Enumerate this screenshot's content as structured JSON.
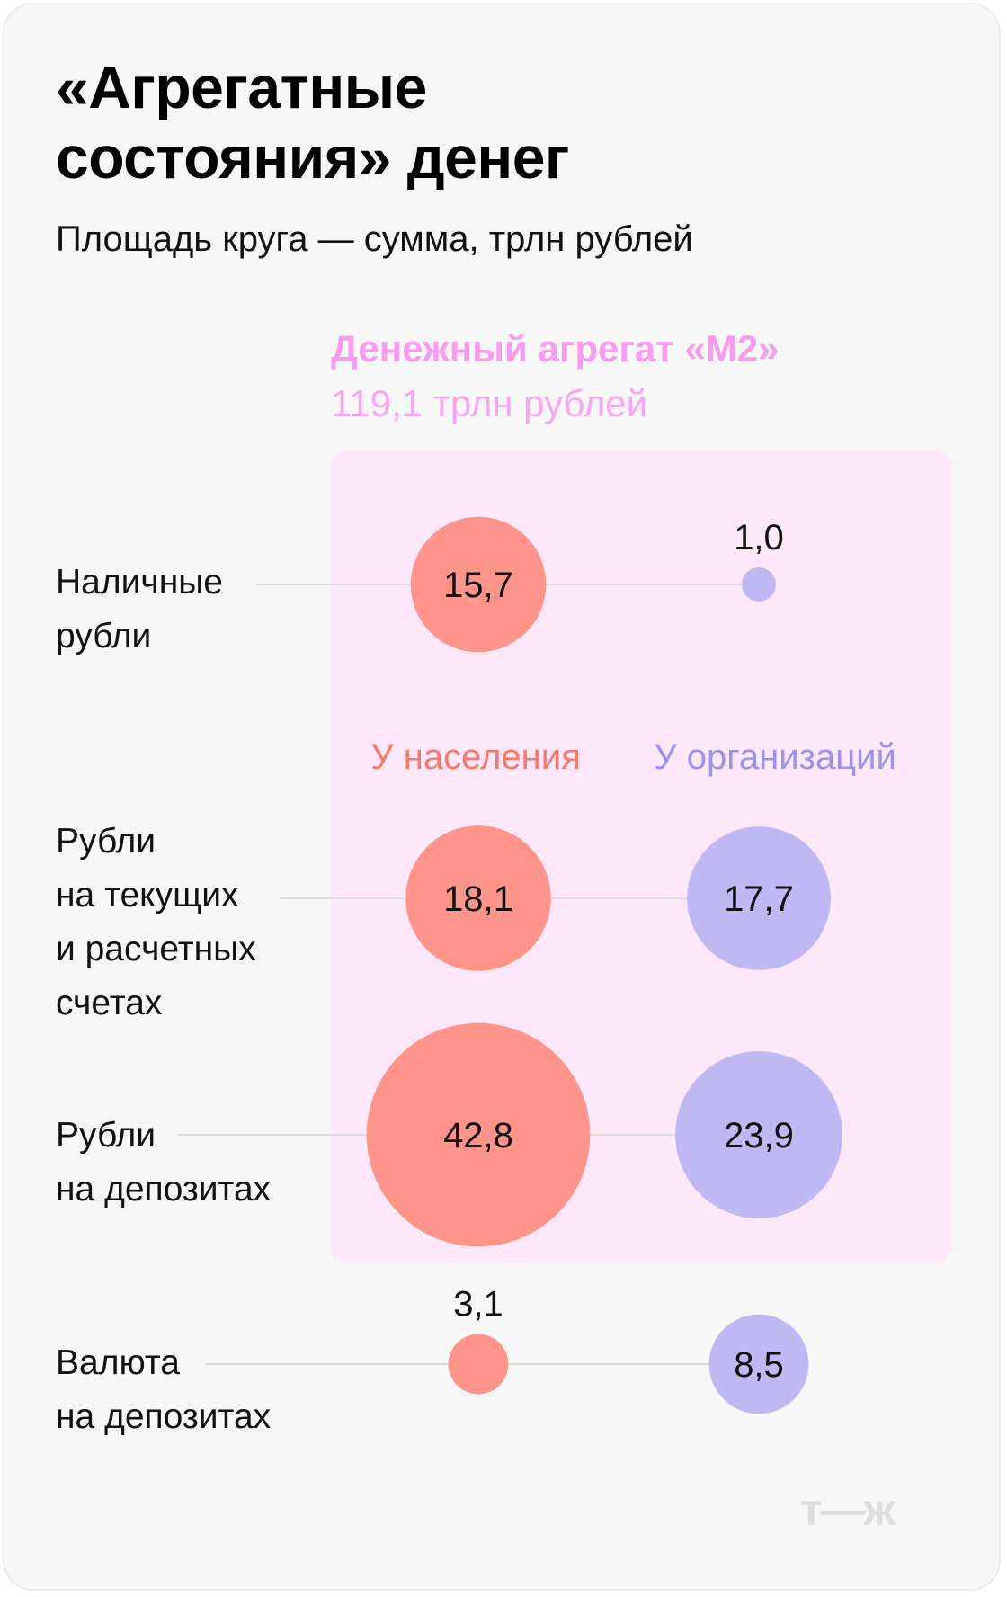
{
  "title": "«Агрегатные состояния» денег",
  "subtitle": "Площадь круга — сумма, трлн рублей",
  "logo": "т—ж",
  "chart_data": {
    "type": "bubble",
    "title": "«Агрегатные состояния» денег",
    "subtitle": "Площадь круга — сумма, трлн рублей",
    "group": {
      "label": "Денежный агрегат «М2»",
      "total_label": "119,1 трлн рублей",
      "total": 119.1
    },
    "columns": [
      {
        "name": "У населения",
        "color": "#ff958a",
        "label_color": "#f8796c"
      },
      {
        "name": "У организаций",
        "color": "#bfb8f2",
        "label_color": "#9a92ee"
      }
    ],
    "rows": [
      {
        "label": "Наличные\nрубли",
        "values": [
          15.7,
          1.0
        ],
        "labels": [
          "15,7",
          "1,0"
        ],
        "in_m2": true
      },
      {
        "label": "Рубли\nна текущих\nи расчетных\nсчетах",
        "values": [
          18.1,
          17.7
        ],
        "labels": [
          "18,1",
          "17,7"
        ],
        "in_m2": true
      },
      {
        "label": "Рубли\nна депозитах",
        "values": [
          42.8,
          23.9
        ],
        "labels": [
          "42,8",
          "23,9"
        ],
        "in_m2": true
      },
      {
        "label": "Валюта\nна депозитах",
        "values": [
          3.1,
          8.5
        ],
        "labels": [
          "3,1",
          "8,5"
        ],
        "in_m2": false
      }
    ]
  }
}
